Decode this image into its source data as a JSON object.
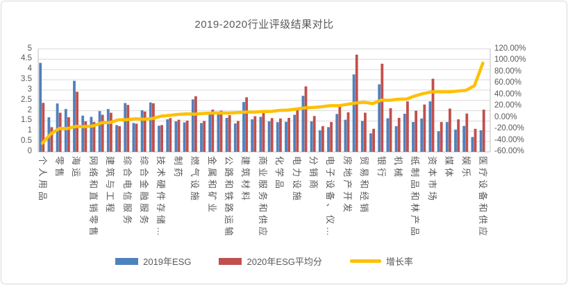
{
  "title": "2019-2020行业评级结果对比",
  "left_axis": {
    "min": 0,
    "max": 5,
    "ticks": [
      "5",
      "4.5",
      "4",
      "3.5",
      "3",
      "2.5",
      "2",
      "1.5",
      "1",
      "0.5",
      "0"
    ]
  },
  "right_axis": {
    "min": -60,
    "max": 120,
    "ticks": [
      "120.00%",
      "100.00%",
      "80.00%",
      "60.00%",
      "40.00%",
      "20.00%",
      "0.00%",
      "-20.00%",
      "-40.00%",
      "-60.00%"
    ]
  },
  "legend": {
    "items": [
      {
        "label": "2019年ESG",
        "color": "#4F81BD",
        "type": "bar"
      },
      {
        "label": "2020年ESG平均分",
        "color": "#C0504D",
        "type": "bar"
      },
      {
        "label": "增长率",
        "color": "#FFC000",
        "type": "line"
      }
    ]
  },
  "colors": {
    "blue_bar": "#4F81BD",
    "red_bar": "#C0504D",
    "growth_line": "#FFC000",
    "gridline": "#D9D9D9",
    "axis_line": "#BFBFBF",
    "text": "#595959"
  },
  "chart_data": {
    "type": "bar+line",
    "title": "2019-2020行业评级结果对比",
    "grid": true,
    "legend_position": "bottom",
    "label_interval": 2,
    "left_ylim": [
      0,
      5
    ],
    "right_ylim": [
      -60,
      120
    ],
    "categories": [
      "个人用品",
      "",
      "零售",
      "",
      "海运",
      "",
      "网络和直销零售",
      "",
      "建筑与工程",
      "",
      "综合电信服务",
      "",
      "综合金融服务",
      "",
      "技术硬件存储…",
      "",
      "制药",
      "",
      "燃气设施",
      "",
      "金属和矿业",
      "",
      "公路和铁路运输",
      "",
      "建筑材料",
      "",
      "商业服务和供应",
      "",
      "化学品",
      "",
      "电力设施",
      "",
      "分销商",
      "",
      "电子设备、仪…",
      "",
      "房地产开发",
      "",
      "贸易和经销",
      "",
      "银行",
      "",
      "机械",
      "",
      "纸制品和林产品",
      "",
      "资本市场",
      "",
      "媒体",
      "",
      "娱乐",
      "",
      "医疗设备和供应"
    ],
    "series": [
      {
        "name": "2019年ESG",
        "type": "bar",
        "axis": "left",
        "color": "#4F81BD",
        "values": [
          4.32,
          1.68,
          2.35,
          2.08,
          3.45,
          1.76,
          1.7,
          1.98,
          2.08,
          1.3,
          2.37,
          1.4,
          2.02,
          2.4,
          1.27,
          1.58,
          1.48,
          1.43,
          2.55,
          1.4,
          1.9,
          1.85,
          1.65,
          1.38,
          2.42,
          1.58,
          1.7,
          1.48,
          1.44,
          1.46,
          1.8,
          2.72,
          1.48,
          1.05,
          1.2,
          1.84,
          1.56,
          3.76,
          1.5,
          0.9,
          3.28,
          1.63,
          1.25,
          1.85,
          1.45,
          1.62,
          2.45,
          1.0,
          1.45,
          1.08,
          1.26,
          0.72,
          1.05
        ]
      },
      {
        "name": "2020年ESG平均分",
        "type": "bar",
        "axis": "left",
        "color": "#C0504D",
        "values": [
          2.38,
          1.2,
          1.9,
          1.68,
          2.92,
          1.48,
          1.45,
          1.8,
          1.9,
          1.25,
          2.28,
          1.37,
          1.96,
          2.36,
          1.3,
          1.64,
          1.56,
          1.52,
          2.7,
          1.5,
          2.05,
          2.0,
          1.78,
          1.5,
          2.65,
          1.73,
          1.88,
          1.64,
          1.62,
          1.65,
          2.07,
          3.18,
          1.74,
          1.25,
          1.45,
          2.22,
          1.92,
          4.72,
          1.9,
          1.12,
          4.28,
          2.12,
          1.65,
          2.45,
          2.0,
          2.3,
          3.55,
          1.45,
          2.1,
          1.58,
          1.86,
          1.12,
          2.05
        ]
      },
      {
        "name": "增长率",
        "type": "line",
        "axis": "right",
        "color": "#FFC000",
        "values": [
          -44.9,
          -28.6,
          -19.1,
          -19.2,
          -15.4,
          -15.9,
          -14.7,
          -9.1,
          -8.7,
          -3.8,
          -3.8,
          -2.1,
          -3.0,
          -1.7,
          2.4,
          3.8,
          5.4,
          6.3,
          5.9,
          7.1,
          7.9,
          8.1,
          7.9,
          8.7,
          9.5,
          9.5,
          10.6,
          10.8,
          12.5,
          13.0,
          15.0,
          16.9,
          17.6,
          19.0,
          20.8,
          20.7,
          23.1,
          25.5,
          26.7,
          24.4,
          30.5,
          30.1,
          32.0,
          32.4,
          37.9,
          42.0,
          44.9,
          45.0,
          44.8,
          46.3,
          47.6,
          55.6,
          95.2
        ]
      }
    ]
  }
}
